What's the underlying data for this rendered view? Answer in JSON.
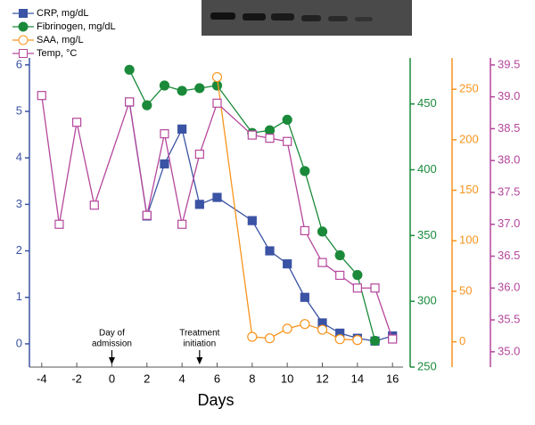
{
  "chart_data": {
    "type": "line",
    "x_label": "Days",
    "xlim": [
      -4.7,
      16.6
    ],
    "xticks": [
      -4,
      -2,
      0,
      2,
      4,
      6,
      8,
      10,
      12,
      14,
      16
    ],
    "ylim": [
      -0.5,
      6.15
    ],
    "yticks": [
      0,
      1,
      2,
      3,
      4,
      5,
      6
    ],
    "y2lim": [
      250,
      485
    ],
    "y2ticks": [
      250,
      300,
      350,
      400,
      450
    ],
    "y3lim": [
      -25,
      281
    ],
    "y3ticks": [
      0,
      50,
      100,
      150,
      200,
      250
    ],
    "y4lim": [
      34.76,
      39.61
    ],
    "y4ticks": [
      {
        "value": 35.0,
        "label": "35.0"
      },
      35.5,
      {
        "value": 36.0,
        "label": "36.0"
      },
      36.5,
      {
        "value": 37.0,
        "label": "37.0"
      },
      37.5,
      {
        "value": 38.0,
        "label": "38.0"
      },
      38.5,
      {
        "value": 39.0,
        "label": "39.0"
      },
      39.5
    ],
    "series": [
      {
        "name": "CRP, mg/dL",
        "color": "#3a53a4",
        "marker": "square",
        "filled": true,
        "axis": "y",
        "x": [
          1,
          2,
          3,
          4,
          5,
          6,
          8,
          9,
          10,
          11,
          12,
          13,
          14,
          15,
          16
        ],
        "values": [
          5.2,
          2.75,
          3.87,
          4.62,
          3.0,
          3.15,
          2.65,
          2.0,
          1.72,
          1.0,
          0.45,
          0.23,
          0.12,
          0.06,
          0.17
        ]
      },
      {
        "name": "Fibrinogen, mg/dL",
        "color": "#1a8a3a",
        "marker": "circle",
        "filled": true,
        "axis": "y2",
        "x": [
          1,
          2,
          3,
          4,
          5,
          6,
          8,
          9,
          10,
          11,
          12,
          13,
          14,
          15
        ],
        "values": [
          476,
          449,
          464,
          460,
          462,
          464,
          428,
          430,
          438,
          399,
          353,
          335,
          320,
          270
        ]
      },
      {
        "name": "SAA, mg/L",
        "color": "#f7941d",
        "marker": "circle",
        "filled": false,
        "axis": "y3",
        "x": [
          6,
          8,
          9,
          10,
          11,
          12,
          13,
          14
        ],
        "values": [
          262,
          5,
          3.5,
          13,
          17.6,
          12,
          2.6,
          1.8
        ]
      },
      {
        "name": "Temp, °C",
        "color": "#b5479c",
        "marker": "square",
        "filled": false,
        "axis": "y4",
        "x": [
          -4,
          -3,
          -2,
          -1,
          1,
          2,
          3,
          4,
          5,
          6,
          8,
          9,
          10,
          11,
          12,
          13,
          14,
          15,
          16
        ],
        "values": [
          39.02,
          37.0,
          38.6,
          37.3,
          38.92,
          37.14,
          38.42,
          37.0,
          38.1,
          38.9,
          38.4,
          38.35,
          38.3,
          36.9,
          36.4,
          36.2,
          36.0,
          36.0,
          35.2
        ]
      }
    ],
    "annotations": [
      {
        "lines": [
          "Day of",
          "admission"
        ],
        "x": 0
      },
      {
        "lines": [
          "Treatment",
          "initiation"
        ],
        "x": 5
      }
    ]
  }
}
